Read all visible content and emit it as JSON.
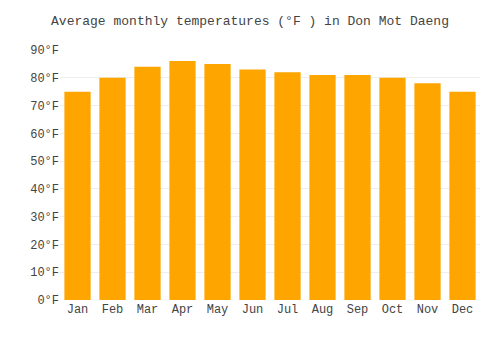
{
  "chart_data": {
    "type": "bar",
    "title": "Average monthly temperatures (°F ) in Don Mot Daeng",
    "categories": [
      "Jan",
      "Feb",
      "Mar",
      "Apr",
      "May",
      "Jun",
      "Jul",
      "Aug",
      "Sep",
      "Oct",
      "Nov",
      "Dec"
    ],
    "values": [
      75,
      80,
      84,
      86,
      85,
      83,
      82,
      81,
      81,
      80,
      78,
      75
    ],
    "color": "#FFA500",
    "ylim": [
      0,
      90
    ],
    "yticks": [
      {
        "value": 0,
        "label": "0°F"
      },
      {
        "value": 10,
        "label": "10°F"
      },
      {
        "value": 20,
        "label": "20°F"
      },
      {
        "value": 30,
        "label": "30°F"
      },
      {
        "value": 40,
        "label": "40°F"
      },
      {
        "value": 50,
        "label": "50°F"
      },
      {
        "value": 60,
        "label": "60°F"
      },
      {
        "value": 70,
        "label": "70°F"
      },
      {
        "value": 80,
        "label": "80°F"
      },
      {
        "value": 90,
        "label": "90°F"
      }
    ],
    "grid": true
  }
}
